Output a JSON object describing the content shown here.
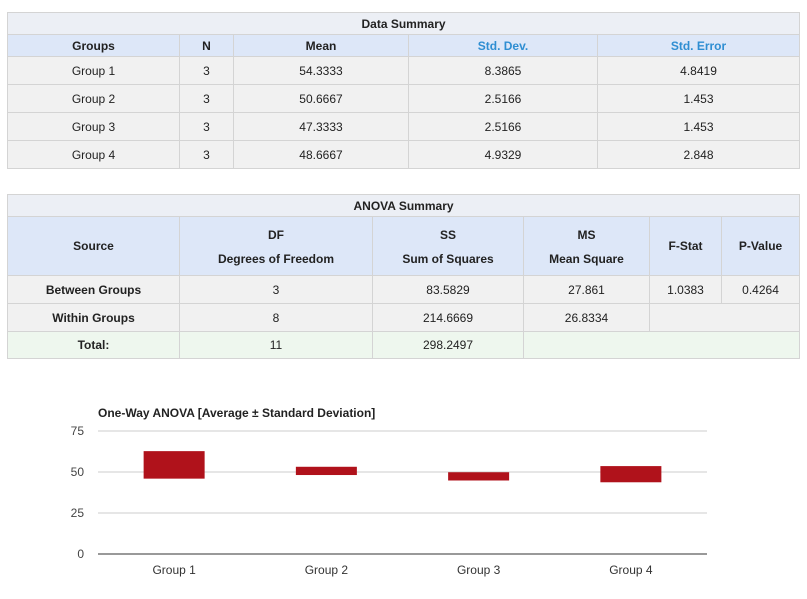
{
  "data_summary": {
    "title": "Data Summary",
    "headers": [
      "Groups",
      "N",
      "Mean",
      "Std. Dev.",
      "Std. Error"
    ],
    "rows": [
      [
        "Group 1",
        "3",
        "54.3333",
        "8.3865",
        "4.8419"
      ],
      [
        "Group 2",
        "3",
        "50.6667",
        "2.5166",
        "1.453"
      ],
      [
        "Group 3",
        "3",
        "47.3333",
        "2.5166",
        "1.453"
      ],
      [
        "Group 4",
        "3",
        "48.6667",
        "4.9329",
        "2.848"
      ]
    ]
  },
  "anova_summary": {
    "title": "ANOVA Summary",
    "headers": {
      "source": "Source",
      "df_top": "Degrees of Freedom",
      "df_bot": "DF",
      "ss_top": "Sum of Squares",
      "ss_bot": "SS",
      "ms_top": "Mean Square",
      "ms_bot": "MS",
      "fstat": "F-Stat",
      "pvalue": "P-Value"
    },
    "between": {
      "label": "Between Groups",
      "df": "3",
      "ss": "83.5829",
      "ms": "27.861",
      "f": "1.0383",
      "p": "0.4264"
    },
    "within": {
      "label": "Within Groups",
      "df": "8",
      "ss": "214.6669",
      "ms": "26.8334"
    },
    "total": {
      "label": "Total:",
      "df": "11",
      "ss": "298.2497"
    }
  },
  "chart_data": {
    "type": "bar",
    "title": "One-Way ANOVA [Average ± Standard Deviation]",
    "categories": [
      "Group 1",
      "Group 2",
      "Group 3",
      "Group 4"
    ],
    "mean": [
      54.3333,
      50.6667,
      47.3333,
      48.6667
    ],
    "std_dev": [
      8.3865,
      2.5166,
      2.5166,
      4.9329
    ],
    "ylim": [
      0,
      75
    ],
    "yticks": [
      0,
      25,
      50,
      75
    ],
    "xlabel": "",
    "ylabel": "",
    "grid": true,
    "bar_color": "#b0121b"
  }
}
